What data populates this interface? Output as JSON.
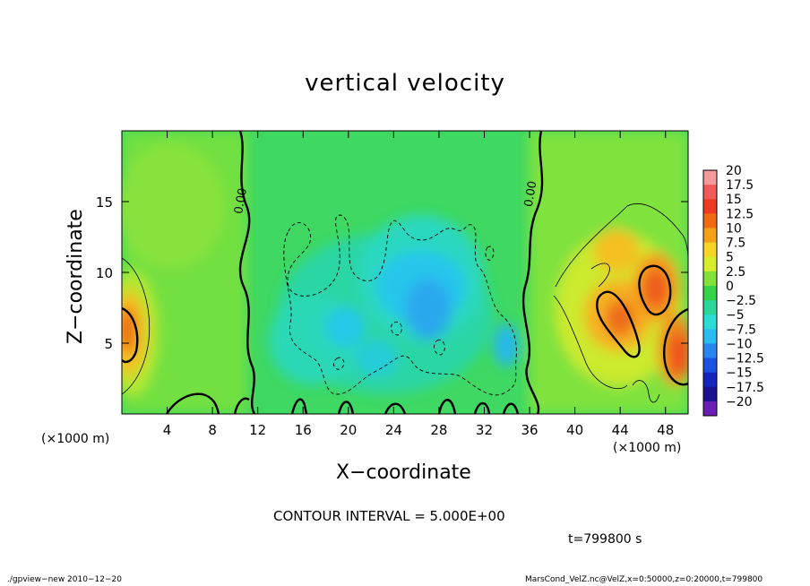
{
  "chart_data": {
    "type": "heatmap",
    "title": "vertical velocity",
    "xlabel": "X−coordinate",
    "ylabel": "Z−coordinate",
    "x_unit_left": "(×1000 m)",
    "x_unit_right": "(×1000 m)",
    "x_ticks": [
      4,
      8,
      12,
      16,
      20,
      24,
      28,
      32,
      36,
      40,
      44,
      48
    ],
    "y_ticks": [
      5,
      10,
      15
    ],
    "xlim": [
      0,
      50
    ],
    "ylim": [
      0,
      20
    ],
    "contour_labels": [
      {
        "text": "0.00",
        "x": 10.8,
        "z": 15.0
      },
      {
        "text": "0.00",
        "x": 36.4,
        "z": 15.5
      }
    ],
    "colorbar": {
      "labels": [
        "20",
        "17.5",
        "15",
        "12.5",
        "10",
        "7.5",
        "5",
        "2.5",
        "0",
        "−2.5",
        "−5",
        "−7.5",
        "−10",
        "−12.5",
        "−15",
        "−17.5",
        "−20"
      ],
      "colors": [
        "#f49a9a",
        "#f25a5a",
        "#ee3a22",
        "#f06a14",
        "#f4a018",
        "#f6d624",
        "#d6ee2a",
        "#82e23a",
        "#36d24a",
        "#2ad69a",
        "#2adcd4",
        "#28bcf0",
        "#2a86ee",
        "#1c52e2",
        "#1424bc",
        "#1a1090",
        "#6a1eb4"
      ]
    },
    "features": [
      {
        "kind": "updraft",
        "x": 0.6,
        "z": 6.2,
        "w": 12.5
      },
      {
        "kind": "downdraft",
        "x": 19.5,
        "z": 7.5,
        "w": -7.5
      },
      {
        "kind": "downdraft",
        "x": 26.0,
        "z": 8.5,
        "w": -8.5
      },
      {
        "kind": "downdraft",
        "x": 33.5,
        "z": 5.0,
        "w": -7.5
      },
      {
        "kind": "updraft",
        "x": 43.5,
        "z": 8.5,
        "w": 12.5
      },
      {
        "kind": "updraft",
        "x": 46.5,
        "z": 9.0,
        "w": 13.0
      },
      {
        "kind": "updraft",
        "x": 48.8,
        "z": 5.0,
        "w": 12.5
      },
      {
        "kind": "updraft",
        "x": 44.3,
        "z": 13.0,
        "w": 9.0
      }
    ]
  },
  "annotations": {
    "contour_interval": "CONTOUR INTERVAL = 5.000E+00",
    "time": "t=799800 s",
    "footer_left": "./gpview−new   2010−12−20",
    "footer_right": "MarsCond_VelZ.nc@VelZ,x=0:50000,z=0:20000,t=799800"
  }
}
